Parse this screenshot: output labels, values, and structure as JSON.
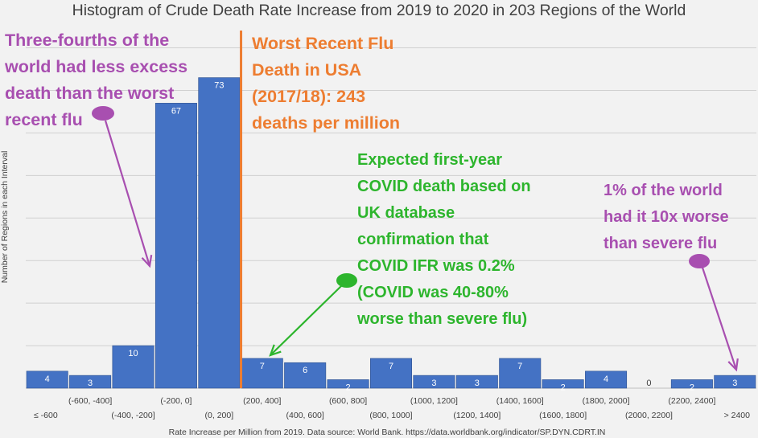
{
  "chart_data": {
    "type": "bar",
    "title": "Histogram of Crude Death Rate Increase from 2019 to 2020 in 203 Regions of the World",
    "ylabel": "Number of Regions in each Interval",
    "xlabel": "Rate Increase per Million from 2019. Data source: World Bank. https://data.worldbank.org/indicator/SP.DYN.CDRT.IN",
    "ylim": [
      0,
      80
    ],
    "grid": true,
    "categories": [
      "≤ -600",
      "(-600, -400]",
      "(-400, -200]",
      "(-200, 0]",
      "(0, 200]",
      "(200, 400]",
      "(400, 600]",
      "(600, 800]",
      "(800, 1000]",
      "(1000, 1200]",
      "(1200, 1400]",
      "(1400, 1600]",
      "(1600, 1800]",
      "(1800, 2000]",
      "(2000, 2200]",
      "(2200, 2400]",
      "> 2400"
    ],
    "values": [
      4,
      3,
      10,
      67,
      73,
      7,
      6,
      2,
      7,
      3,
      3,
      7,
      2,
      4,
      0,
      2,
      3
    ],
    "reference_line": {
      "x": 243,
      "label": "Worst Recent Flu Death in USA (2017/18): 243 deaths per million"
    },
    "annotations": [
      {
        "text": "Three-fourths of the world had less excess death than the worst recent flu"
      },
      {
        "text": "Worst Recent Flu Death in USA (2017/18): 243 deaths per million"
      },
      {
        "text": "Expected first-year COVID death based on UK database confirmation that COVID IFR was 0.2% (COVID was 40-80% worse than severe flu)"
      },
      {
        "text": "1% of the world had it 10x worse than severe flu"
      }
    ]
  },
  "annotation_lines": {
    "left": [
      "Three-fourths of the",
      "world had less excess",
      "death than the worst",
      "recent flu"
    ],
    "flu": [
      "Worst Recent Flu",
      "Death in USA",
      "(2017/18): 243",
      "deaths per million"
    ],
    "covid": [
      "Expected first-year",
      "COVID death based on",
      "UK database",
      "confirmation that",
      "COVID IFR was 0.2%",
      "(COVID was 40-80%",
      "worse than severe flu)"
    ],
    "right": [
      "1% of the world",
      "had it 10x worse",
      "than severe flu"
    ]
  },
  "colors": {
    "bar": "#4472c4",
    "bar_edge": "#2f528f",
    "flu_line": "#ed7d31",
    "purple": "#a84fb0",
    "green": "#2db52d",
    "grid": "#d0d0d0",
    "text": "#404040"
  }
}
